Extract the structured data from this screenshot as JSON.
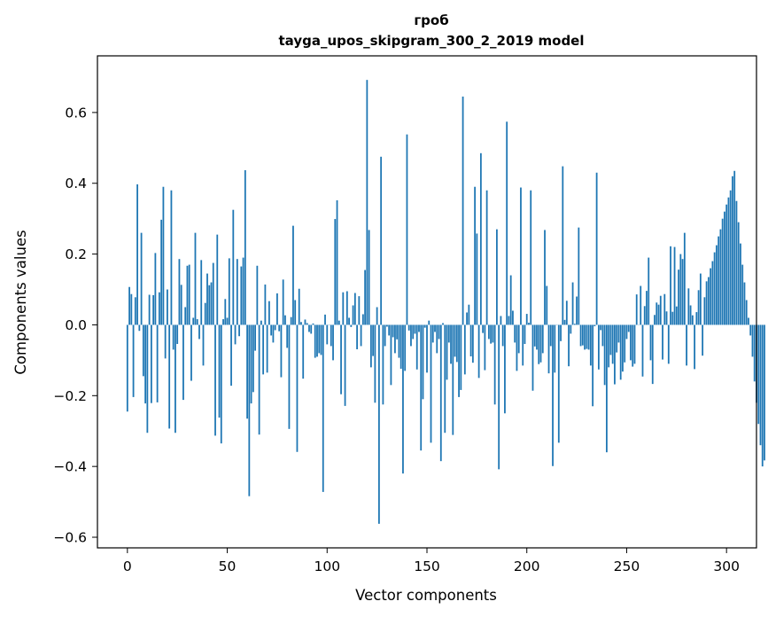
{
  "chart_data": {
    "type": "bar",
    "title": "гроб",
    "subtitle": "tayga_upos_skipgram_300_2_2019 model",
    "xlabel": "Vector components",
    "ylabel": "Components values",
    "xlim": [
      -15,
      315
    ],
    "ylim": [
      -0.63,
      0.76
    ],
    "xticks": [
      0,
      50,
      100,
      150,
      200,
      250,
      300
    ],
    "xtick_labels": [
      "0",
      "50",
      "100",
      "150",
      "200",
      "250",
      "300"
    ],
    "yticks": [
      -0.6,
      -0.4,
      -0.2,
      0.0,
      0.2,
      0.4,
      0.6
    ],
    "ytick_labels": [
      "−0.6",
      "−0.4",
      "−0.2",
      "0.0",
      "0.2",
      "0.4",
      "0.6"
    ],
    "bar_color": "#1f77b4",
    "values": [
      -0.245,
      0.107,
      0.087,
      -0.204,
      0.078,
      0.397,
      -0.017,
      0.26,
      -0.145,
      -0.222,
      -0.305,
      0.085,
      -0.221,
      0.084,
      0.203,
      -0.219,
      0.092,
      0.297,
      0.39,
      -0.095,
      0.1,
      -0.293,
      0.38,
      -0.07,
      -0.305,
      -0.054,
      0.186,
      0.113,
      -0.212,
      0.05,
      0.167,
      0.17,
      -0.158,
      0.02,
      0.26,
      0.016,
      -0.04,
      0.183,
      -0.115,
      0.062,
      0.145,
      0.112,
      0.12,
      0.175,
      -0.313,
      0.255,
      -0.262,
      -0.335,
      0.016,
      0.073,
      0.02,
      0.188,
      -0.172,
      0.325,
      -0.055,
      0.186,
      -0.032,
      0.165,
      0.19,
      0.437,
      -0.265,
      -0.484,
      -0.222,
      -0.19,
      -0.073,
      0.167,
      -0.31,
      0.012,
      -0.14,
      0.114,
      -0.135,
      0.067,
      -0.03,
      -0.05,
      -0.015,
      0.089,
      -0.018,
      -0.148,
      0.128,
      0.027,
      -0.065,
      -0.294,
      0.022,
      0.28,
      0.07,
      -0.359,
      0.102,
      0.008,
      -0.152,
      0.015,
      0.005,
      -0.02,
      -0.025,
      0.004,
      -0.093,
      -0.09,
      -0.08,
      -0.085,
      -0.472,
      0.029,
      -0.055,
      0.0,
      -0.06,
      -0.1,
      0.299,
      0.352,
      0.012,
      -0.196,
      0.092,
      -0.229,
      0.095,
      0.02,
      -0.006,
      0.055,
      0.09,
      -0.069,
      0.081,
      -0.06,
      0.03,
      0.155,
      0.692,
      0.268,
      -0.12,
      -0.088,
      -0.22,
      0.05,
      -0.562,
      0.475,
      -0.225,
      -0.06,
      -0.005,
      -0.03,
      -0.17,
      -0.035,
      -0.08,
      -0.041,
      -0.093,
      -0.124,
      -0.42,
      -0.13,
      0.538,
      -0.016,
      -0.06,
      -0.04,
      -0.025,
      -0.126,
      -0.02,
      -0.355,
      -0.21,
      -0.008,
      -0.135,
      0.012,
      -0.333,
      -0.05,
      -0.02,
      -0.08,
      -0.04,
      -0.385,
      0.005,
      -0.305,
      -0.155,
      -0.05,
      -0.11,
      -0.311,
      -0.09,
      -0.105,
      -0.204,
      -0.184,
      0.645,
      -0.14,
      0.035,
      0.057,
      -0.089,
      -0.107,
      0.39,
      0.258,
      -0.15,
      0.485,
      -0.023,
      -0.128,
      0.38,
      -0.04,
      -0.053,
      -0.05,
      -0.225,
      0.27,
      -0.408,
      0.025,
      -0.06,
      -0.25,
      0.574,
      0.025,
      0.14,
      0.04,
      -0.05,
      -0.13,
      -0.08,
      0.388,
      -0.115,
      -0.054,
      0.031,
      0.006,
      0.38,
      -0.186,
      -0.061,
      -0.07,
      -0.111,
      -0.106,
      -0.08,
      0.268,
      0.11,
      -0.137,
      -0.06,
      -0.399,
      -0.135,
      0.0,
      -0.333,
      -0.046,
      0.448,
      0.014,
      0.068,
      -0.117,
      -0.025,
      0.12,
      0.003,
      0.08,
      0.275,
      -0.06,
      -0.058,
      -0.07,
      -0.068,
      -0.07,
      -0.115,
      -0.23,
      -0.004,
      0.43,
      -0.126,
      -0.015,
      -0.06,
      -0.17,
      -0.36,
      -0.12,
      -0.085,
      -0.11,
      -0.168,
      -0.078,
      -0.05,
      -0.155,
      -0.132,
      -0.106,
      -0.04,
      -0.02,
      -0.1,
      -0.118,
      -0.11,
      0.086,
      0.0,
      0.11,
      -0.146,
      0.053,
      0.096,
      0.19,
      -0.1,
      -0.167,
      0.028,
      0.063,
      0.057,
      0.082,
      -0.098,
      0.087,
      0.038,
      -0.11,
      0.222,
      0.037,
      0.22,
      0.052,
      0.156,
      0.2,
      0.186,
      0.26,
      -0.115,
      0.103,
      0.055,
      0.027,
      -0.125,
      0.036,
      0.098,
      0.145,
      -0.087,
      0.078,
      0.123,
      0.135,
      0.16,
      0.18,
      0.205,
      0.225,
      0.25,
      0.27,
      0.3,
      0.32,
      0.34,
      0.36,
      0.38,
      0.42,
      0.435,
      0.35,
      0.29,
      0.23,
      0.17,
      0.12,
      0.07,
      0.02,
      -0.03,
      -0.09,
      -0.16,
      -0.22,
      -0.28,
      -0.34,
      -0.4,
      -0.383
    ]
  }
}
